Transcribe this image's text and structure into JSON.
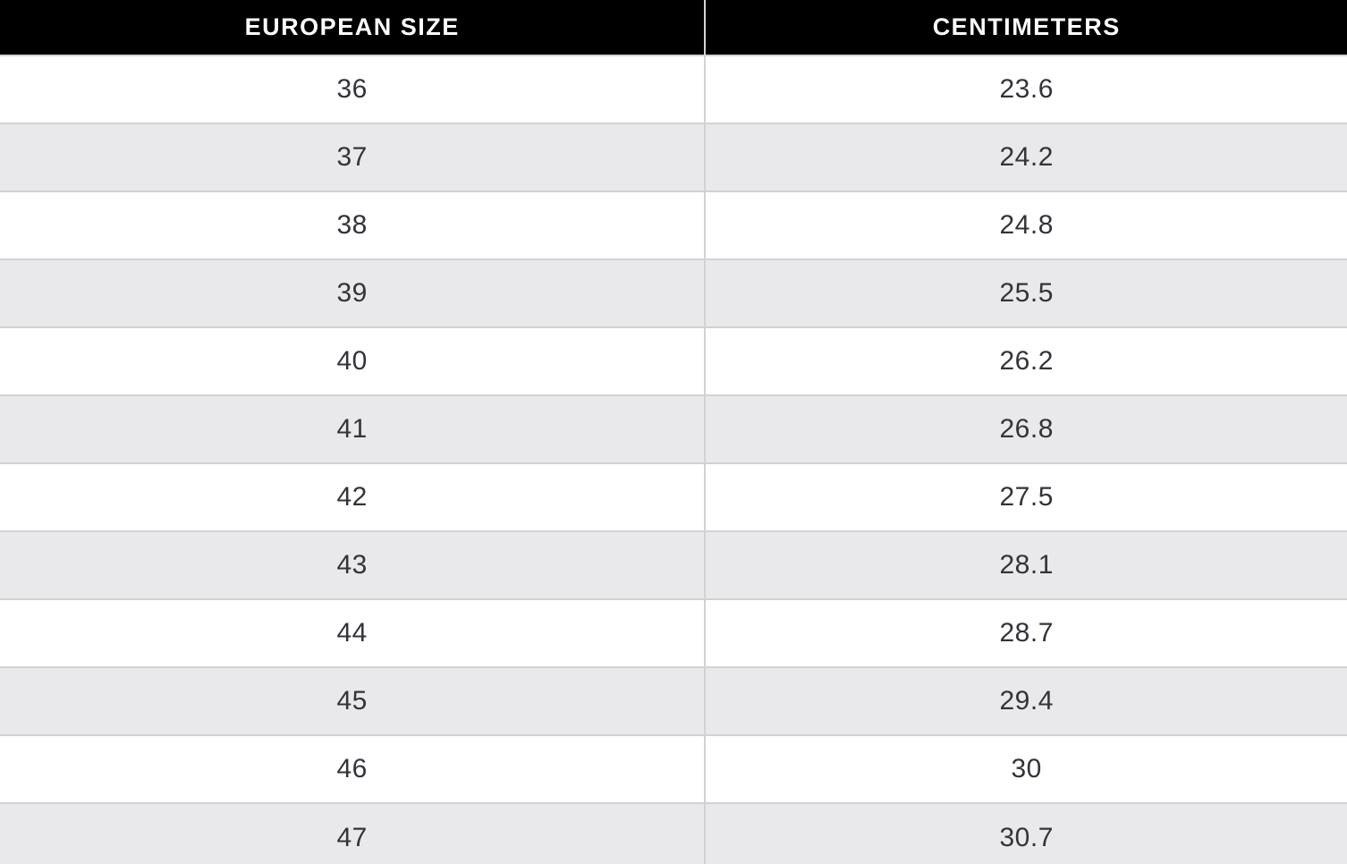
{
  "table": {
    "columns": [
      {
        "label": "EUROPEAN SIZE"
      },
      {
        "label": "CENTIMETERS"
      }
    ],
    "rows": [
      {
        "eu": "36",
        "cm": "23.6"
      },
      {
        "eu": "37",
        "cm": "24.2"
      },
      {
        "eu": "38",
        "cm": "24.8"
      },
      {
        "eu": "39",
        "cm": "25.5"
      },
      {
        "eu": "40",
        "cm": "26.2"
      },
      {
        "eu": "41",
        "cm": "26.8"
      },
      {
        "eu": "42",
        "cm": "27.5"
      },
      {
        "eu": "43",
        "cm": "28.1"
      },
      {
        "eu": "44",
        "cm": "28.7"
      },
      {
        "eu": "45",
        "cm": "29.4"
      },
      {
        "eu": "46",
        "cm": "30"
      },
      {
        "eu": "47",
        "cm": "30.7"
      }
    ]
  },
  "colors": {
    "header_bg": "#000000",
    "header_text": "#ffffff",
    "row_bg": "#ffffff",
    "row_alt_bg": "#e9e9eb",
    "cell_text": "#33333b",
    "divider": "#d2d2d4"
  },
  "chart_data": {
    "type": "table",
    "title": "",
    "columns": [
      "EUROPEAN SIZE",
      "CENTIMETERS"
    ],
    "rows": [
      [
        36,
        23.6
      ],
      [
        37,
        24.2
      ],
      [
        38,
        24.8
      ],
      [
        39,
        25.5
      ],
      [
        40,
        26.2
      ],
      [
        41,
        26.8
      ],
      [
        42,
        27.5
      ],
      [
        43,
        28.1
      ],
      [
        44,
        28.7
      ],
      [
        45,
        29.4
      ],
      [
        46,
        30
      ],
      [
        47,
        30.7
      ]
    ]
  }
}
